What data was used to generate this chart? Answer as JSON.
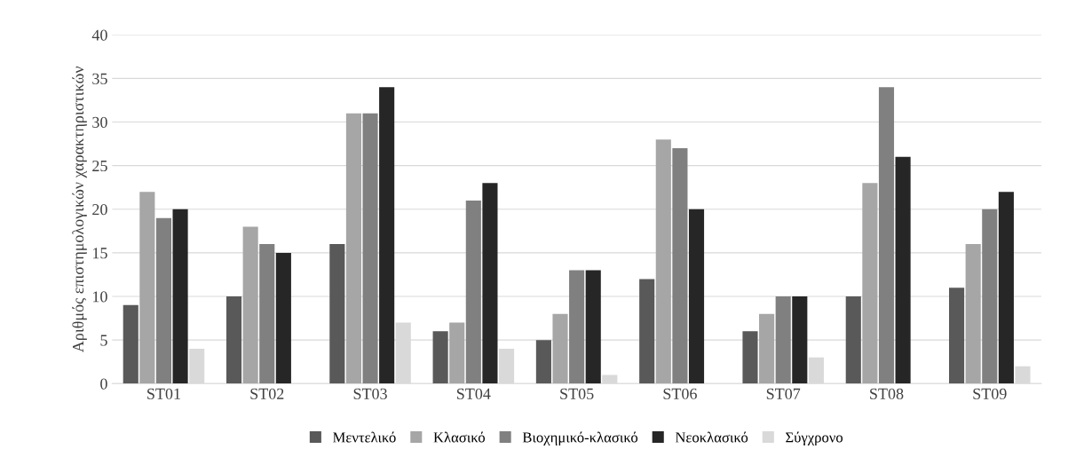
{
  "chart_data": {
    "type": "bar",
    "ylabel": "Αριθμός επιστημολογικών χαρακτηριστικών",
    "categories": [
      "ST01",
      "ST02",
      "ST03",
      "ST04",
      "ST05",
      "ST06",
      "ST07",
      "ST08",
      "ST09"
    ],
    "series": [
      {
        "name": "Μεντελικό",
        "color": "#595959",
        "values": [
          9,
          10,
          16,
          6,
          5,
          12,
          6,
          10,
          11
        ]
      },
      {
        "name": "Κλασικό",
        "color": "#a6a6a6",
        "values": [
          22,
          18,
          31,
          7,
          8,
          28,
          8,
          23,
          16
        ]
      },
      {
        "name": "Βιοχημικό-κλασικό",
        "color": "#808080",
        "values": [
          19,
          16,
          31,
          21,
          13,
          27,
          10,
          34,
          20
        ]
      },
      {
        "name": "Νεοκλασικό",
        "color": "#262626",
        "values": [
          20,
          15,
          34,
          23,
          13,
          20,
          10,
          26,
          22
        ]
      },
      {
        "name": "Σύγχρονο",
        "color": "#d9d9d9",
        "values": [
          4,
          0,
          7,
          4,
          1,
          0,
          3,
          0,
          2
        ]
      }
    ],
    "ylim": [
      0,
      40
    ],
    "yticks": [
      0,
      5,
      10,
      15,
      20,
      25,
      30,
      35,
      40
    ],
    "grid": "y",
    "legend": "bottom"
  }
}
